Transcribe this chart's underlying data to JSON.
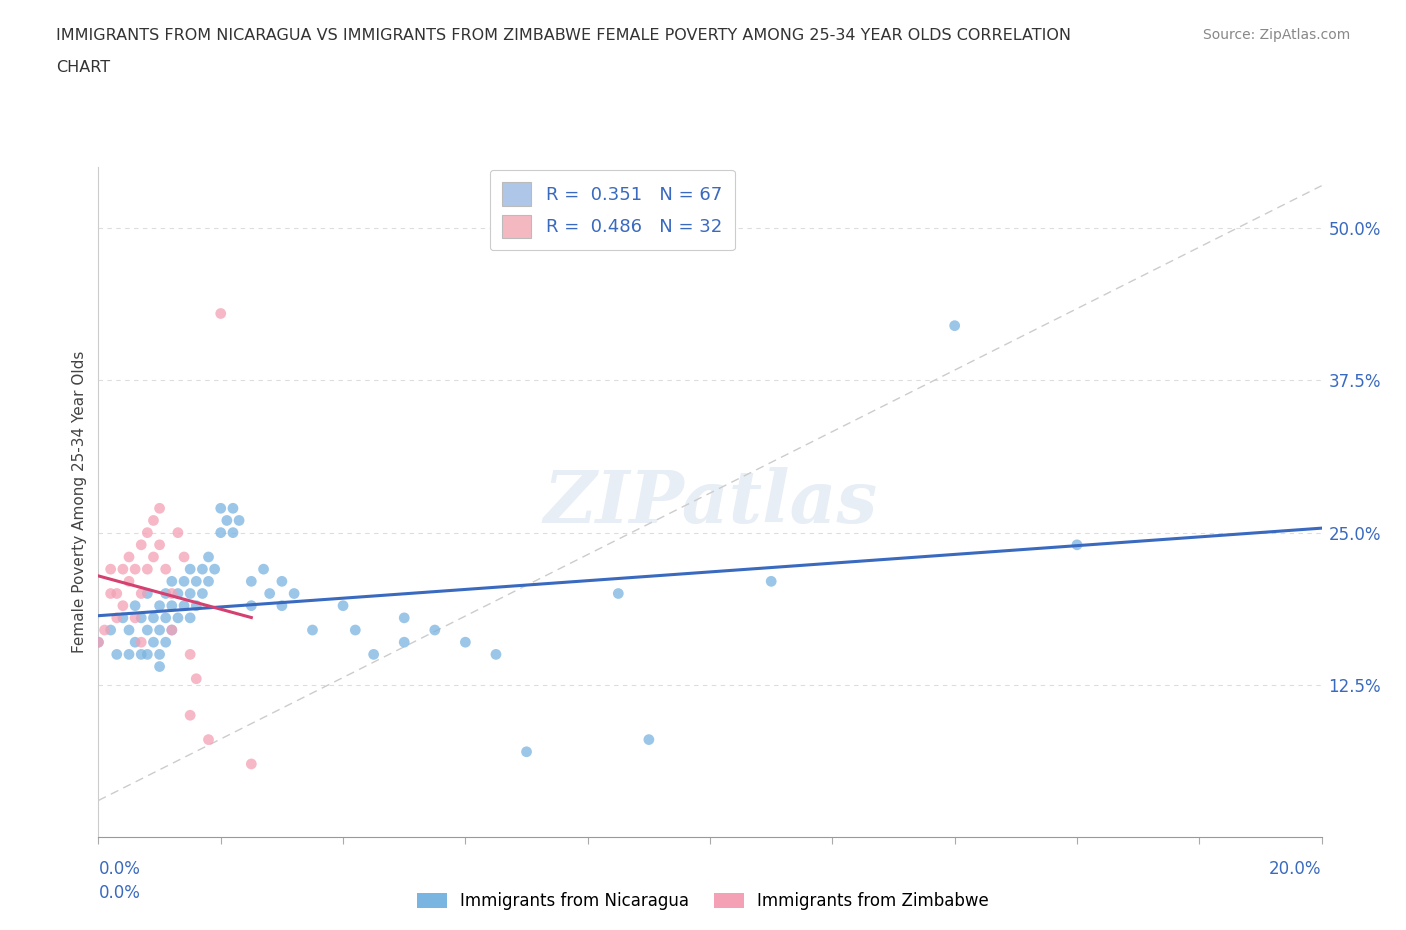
{
  "title_line1": "IMMIGRANTS FROM NICARAGUA VS IMMIGRANTS FROM ZIMBABWE FEMALE POVERTY AMONG 25-34 YEAR OLDS CORRELATION",
  "title_line2": "CHART",
  "source": "Source: ZipAtlas.com",
  "ylabel": "Female Poverty Among 25-34 Year Olds",
  "yticks": [
    0.0,
    0.125,
    0.25,
    0.375,
    0.5
  ],
  "ytick_labels": [
    "",
    "12.5%",
    "25.0%",
    "37.5%",
    "50.0%"
  ],
  "xlim": [
    0.0,
    0.2
  ],
  "ylim": [
    0.0,
    0.55
  ],
  "legend_entries": [
    {
      "label": "R =  0.351   N = 67",
      "color": "#aec6e8"
    },
    {
      "label": "R =  0.486   N = 32",
      "color": "#f4b8c1"
    }
  ],
  "watermark": "ZIPatlas",
  "nicaragua_color": "#7ab4e0",
  "zimbabwe_color": "#f4a0b5",
  "nicaragua_line_color": "#3a6abf",
  "zimbabwe_line_color": "#d44070",
  "diagonal_color": "#cccccc",
  "nicaragua_points": [
    [
      0.0,
      0.16
    ],
    [
      0.002,
      0.17
    ],
    [
      0.003,
      0.15
    ],
    [
      0.004,
      0.18
    ],
    [
      0.005,
      0.17
    ],
    [
      0.005,
      0.15
    ],
    [
      0.006,
      0.19
    ],
    [
      0.006,
      0.16
    ],
    [
      0.007,
      0.18
    ],
    [
      0.007,
      0.15
    ],
    [
      0.008,
      0.2
    ],
    [
      0.008,
      0.17
    ],
    [
      0.008,
      0.15
    ],
    [
      0.009,
      0.18
    ],
    [
      0.009,
      0.16
    ],
    [
      0.01,
      0.19
    ],
    [
      0.01,
      0.17
    ],
    [
      0.01,
      0.15
    ],
    [
      0.01,
      0.14
    ],
    [
      0.011,
      0.2
    ],
    [
      0.011,
      0.18
    ],
    [
      0.011,
      0.16
    ],
    [
      0.012,
      0.21
    ],
    [
      0.012,
      0.19
    ],
    [
      0.012,
      0.17
    ],
    [
      0.013,
      0.2
    ],
    [
      0.013,
      0.18
    ],
    [
      0.014,
      0.21
    ],
    [
      0.014,
      0.19
    ],
    [
      0.015,
      0.22
    ],
    [
      0.015,
      0.2
    ],
    [
      0.015,
      0.18
    ],
    [
      0.016,
      0.21
    ],
    [
      0.016,
      0.19
    ],
    [
      0.017,
      0.22
    ],
    [
      0.017,
      0.2
    ],
    [
      0.018,
      0.23
    ],
    [
      0.018,
      0.21
    ],
    [
      0.019,
      0.22
    ],
    [
      0.02,
      0.27
    ],
    [
      0.02,
      0.25
    ],
    [
      0.021,
      0.26
    ],
    [
      0.022,
      0.27
    ],
    [
      0.022,
      0.25
    ],
    [
      0.023,
      0.26
    ],
    [
      0.025,
      0.21
    ],
    [
      0.025,
      0.19
    ],
    [
      0.027,
      0.22
    ],
    [
      0.028,
      0.2
    ],
    [
      0.03,
      0.21
    ],
    [
      0.03,
      0.19
    ],
    [
      0.032,
      0.2
    ],
    [
      0.035,
      0.17
    ],
    [
      0.04,
      0.19
    ],
    [
      0.042,
      0.17
    ],
    [
      0.045,
      0.15
    ],
    [
      0.05,
      0.18
    ],
    [
      0.05,
      0.16
    ],
    [
      0.055,
      0.17
    ],
    [
      0.06,
      0.16
    ],
    [
      0.065,
      0.15
    ],
    [
      0.07,
      0.07
    ],
    [
      0.085,
      0.2
    ],
    [
      0.09,
      0.08
    ],
    [
      0.11,
      0.21
    ],
    [
      0.14,
      0.42
    ],
    [
      0.16,
      0.24
    ]
  ],
  "zimbabwe_points": [
    [
      0.0,
      0.16
    ],
    [
      0.001,
      0.17
    ],
    [
      0.002,
      0.2
    ],
    [
      0.002,
      0.22
    ],
    [
      0.003,
      0.18
    ],
    [
      0.003,
      0.2
    ],
    [
      0.004,
      0.22
    ],
    [
      0.004,
      0.19
    ],
    [
      0.005,
      0.23
    ],
    [
      0.005,
      0.21
    ],
    [
      0.006,
      0.22
    ],
    [
      0.006,
      0.18
    ],
    [
      0.007,
      0.24
    ],
    [
      0.007,
      0.2
    ],
    [
      0.007,
      0.16
    ],
    [
      0.008,
      0.25
    ],
    [
      0.008,
      0.22
    ],
    [
      0.009,
      0.26
    ],
    [
      0.009,
      0.23
    ],
    [
      0.01,
      0.27
    ],
    [
      0.01,
      0.24
    ],
    [
      0.011,
      0.22
    ],
    [
      0.012,
      0.2
    ],
    [
      0.012,
      0.17
    ],
    [
      0.013,
      0.25
    ],
    [
      0.014,
      0.23
    ],
    [
      0.015,
      0.15
    ],
    [
      0.015,
      0.1
    ],
    [
      0.016,
      0.13
    ],
    [
      0.018,
      0.08
    ],
    [
      0.02,
      0.43
    ],
    [
      0.025,
      0.06
    ]
  ],
  "nicaragua_regline": [
    0.0,
    0.2,
    0.145,
    0.28
  ],
  "zimbabwe_regline": [
    0.0,
    0.025,
    0.085,
    0.32
  ]
}
